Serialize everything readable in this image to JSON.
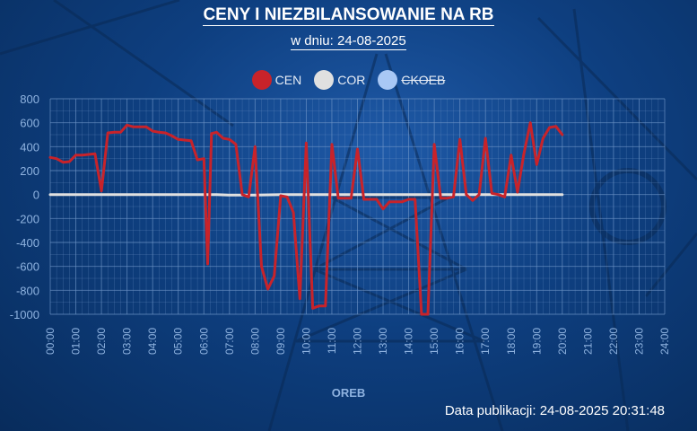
{
  "header": {
    "title": "CENY I NIEZBILANSOWANIE NA RB",
    "subtitle": "w dniu: 24-08-2025"
  },
  "footer": {
    "published": "Data publikacji: 24-08-2025 20:31:48"
  },
  "colors": {
    "CEN": "#c8232a",
    "COR": "#e0e0e0",
    "CKOEB": "#a9c8f5",
    "axis_text": "#8fb3e0",
    "grid": "#6f95c8"
  },
  "chart_data": {
    "type": "line",
    "title": "CENY I NIEZBILANSOWANIE NA RB",
    "subtitle": "w dniu: 24-08-2025",
    "xlabel": "OREB",
    "ylabel": "",
    "ylim": [
      -1000,
      800
    ],
    "yticks": [
      800,
      600,
      400,
      200,
      0,
      -200,
      -400,
      -600,
      -800,
      -1000
    ],
    "xticks": [
      "00:00",
      "01:00",
      "02:00",
      "03:00",
      "04:00",
      "05:00",
      "06:00",
      "07:00",
      "08:00",
      "09:00",
      "10:00",
      "11:00",
      "12:00",
      "13:00",
      "14:00",
      "15:00",
      "16:00",
      "17:00",
      "18:00",
      "19:00",
      "20:00",
      "21:00",
      "22:00",
      "23:00",
      "24:00"
    ],
    "grid": true,
    "legend_position": "top-center",
    "series": [
      {
        "name": "CEN",
        "visible": true,
        "points": [
          [
            0.0,
            310
          ],
          [
            0.25,
            300
          ],
          [
            0.5,
            270
          ],
          [
            0.75,
            275
          ],
          [
            1.0,
            330
          ],
          [
            1.25,
            330
          ],
          [
            1.5,
            335
          ],
          [
            1.75,
            340
          ],
          [
            2.0,
            30
          ],
          [
            2.25,
            515
          ],
          [
            2.5,
            520
          ],
          [
            2.75,
            520
          ],
          [
            3.0,
            580
          ],
          [
            3.25,
            565
          ],
          [
            3.5,
            565
          ],
          [
            3.75,
            565
          ],
          [
            4.0,
            530
          ],
          [
            4.25,
            520
          ],
          [
            4.5,
            515
          ],
          [
            4.75,
            490
          ],
          [
            5.0,
            460
          ],
          [
            5.25,
            455
          ],
          [
            5.5,
            450
          ],
          [
            5.75,
            290
          ],
          [
            6.0,
            300
          ],
          [
            6.15,
            -580
          ],
          [
            6.3,
            510
          ],
          [
            6.5,
            520
          ],
          [
            6.75,
            470
          ],
          [
            7.0,
            460
          ],
          [
            7.25,
            420
          ],
          [
            7.5,
            0
          ],
          [
            7.75,
            -20
          ],
          [
            8.0,
            400
          ],
          [
            8.25,
            -600
          ],
          [
            8.5,
            -790
          ],
          [
            8.75,
            -680
          ],
          [
            9.0,
            -10
          ],
          [
            9.25,
            -20
          ],
          [
            9.5,
            -150
          ],
          [
            9.75,
            -870
          ],
          [
            10.0,
            430
          ],
          [
            10.25,
            -950
          ],
          [
            10.5,
            -930
          ],
          [
            10.75,
            -930
          ],
          [
            11.0,
            420
          ],
          [
            11.25,
            -30
          ],
          [
            11.5,
            -30
          ],
          [
            11.75,
            -30
          ],
          [
            12.0,
            380
          ],
          [
            12.25,
            -40
          ],
          [
            12.5,
            -40
          ],
          [
            12.75,
            -40
          ],
          [
            13.0,
            -120
          ],
          [
            13.25,
            -60
          ],
          [
            13.5,
            -60
          ],
          [
            13.75,
            -60
          ],
          [
            14.0,
            -40
          ],
          [
            14.25,
            -40
          ],
          [
            14.5,
            -1000
          ],
          [
            14.75,
            -1000
          ],
          [
            15.0,
            420
          ],
          [
            15.25,
            -30
          ],
          [
            15.5,
            -30
          ],
          [
            15.75,
            -20
          ],
          [
            16.0,
            460
          ],
          [
            16.25,
            0
          ],
          [
            16.5,
            -50
          ],
          [
            16.75,
            0
          ],
          [
            17.0,
            470
          ],
          [
            17.25,
            10
          ],
          [
            17.5,
            0
          ],
          [
            17.75,
            -20
          ],
          [
            18.0,
            330
          ],
          [
            18.25,
            20
          ],
          [
            18.5,
            340
          ],
          [
            18.75,
            600
          ],
          [
            19.0,
            250
          ],
          [
            19.25,
            470
          ],
          [
            19.5,
            560
          ],
          [
            19.75,
            570
          ],
          [
            20.0,
            500
          ]
        ]
      },
      {
        "name": "COR",
        "visible": true,
        "points": [
          [
            0.0,
            0
          ],
          [
            6.5,
            0
          ],
          [
            7.0,
            -5
          ],
          [
            8.0,
            -5
          ],
          [
            9.0,
            0
          ],
          [
            10.0,
            0
          ],
          [
            11.0,
            0
          ],
          [
            12.0,
            0
          ],
          [
            13.0,
            0
          ],
          [
            14.0,
            0
          ],
          [
            15.0,
            0
          ],
          [
            16.0,
            0
          ],
          [
            17.0,
            0
          ],
          [
            18.0,
            0
          ],
          [
            19.0,
            0
          ],
          [
            20.0,
            0
          ]
        ]
      },
      {
        "name": "CKOEB",
        "visible": false,
        "points": []
      }
    ]
  }
}
